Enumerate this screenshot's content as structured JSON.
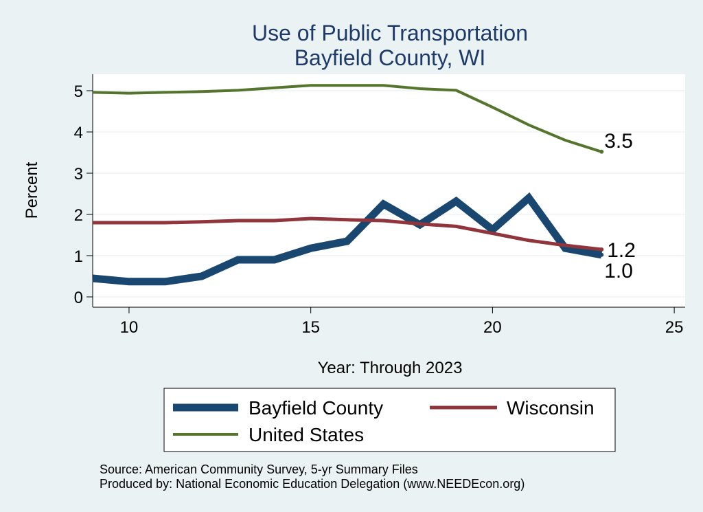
{
  "chart_data": {
    "type": "line",
    "title": "Use of Public Transportation",
    "subtitle": "Bayfield County, WI",
    "xlabel": "Year: Through 2023",
    "ylabel": "Percent",
    "xlim": [
      9,
      25.3
    ],
    "ylim": [
      -0.25,
      5.4
    ],
    "xticks": [
      10,
      15,
      20,
      25
    ],
    "yticks": [
      0,
      1,
      2,
      3,
      4,
      5
    ],
    "grid": true,
    "legend_position": "bottom",
    "series": [
      {
        "name": "Bayfield County",
        "color": "#1a476f",
        "x": [
          9,
          10,
          11,
          12,
          13,
          14,
          15,
          16,
          17,
          18,
          19,
          20,
          21,
          22,
          23
        ],
        "y": [
          0.45,
          0.37,
          0.37,
          0.5,
          0.9,
          0.9,
          1.18,
          1.35,
          2.25,
          1.75,
          2.32,
          1.63,
          2.4,
          1.18,
          1.02
        ],
        "end_label": "1.0"
      },
      {
        "name": "Wisconsin",
        "color": "#90353b",
        "x": [
          9,
          10,
          11,
          12,
          13,
          14,
          15,
          16,
          17,
          18,
          19,
          20,
          21,
          22,
          23
        ],
        "y": [
          1.8,
          1.8,
          1.8,
          1.82,
          1.85,
          1.85,
          1.9,
          1.87,
          1.85,
          1.77,
          1.71,
          1.54,
          1.37,
          1.25,
          1.15
        ],
        "end_label": "1.2"
      },
      {
        "name": "United States",
        "color": "#55752f",
        "x": [
          9,
          10,
          11,
          12,
          13,
          14,
          15,
          16,
          17,
          18,
          19,
          20,
          21,
          22,
          23
        ],
        "y": [
          4.96,
          4.94,
          4.96,
          4.98,
          5.01,
          5.07,
          5.13,
          5.13,
          5.13,
          5.05,
          5.01,
          4.6,
          4.17,
          3.8,
          3.52
        ],
        "end_label": "3.5"
      }
    ],
    "legend": {
      "items": [
        "Bayfield County",
        "Wisconsin",
        "United States"
      ]
    },
    "notes": {
      "source": "Source: American Community Survey, 5-yr Summary Files",
      "produced_by": "Produced by: National Economic Education Delegation (www.NEEDEcon.org)"
    }
  }
}
